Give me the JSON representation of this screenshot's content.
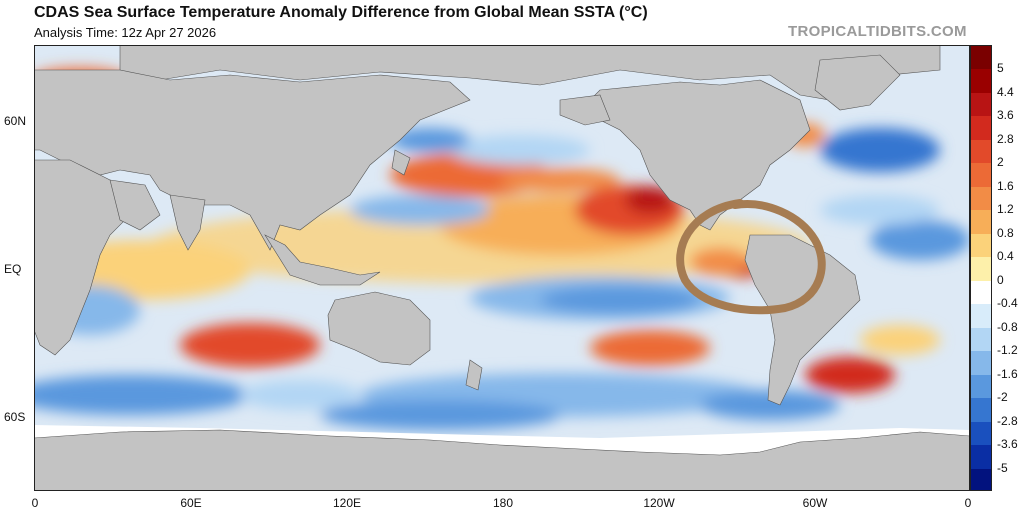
{
  "header": {
    "title": "CDAS Sea Surface Temperature Anomaly Difference from Global Mean SSTA (°C)",
    "subtitle": "Analysis Time: 12z Apr 27 2026",
    "watermark": "TROPICALTIDBITS.COM"
  },
  "axes": {
    "lat_labels": [
      "60N",
      "EQ",
      "60S"
    ],
    "lon_labels": [
      "0",
      "60E",
      "120E",
      "180",
      "120W",
      "60W",
      "0"
    ]
  },
  "colorbar": {
    "labels": [
      "5",
      "4.4",
      "3.6",
      "2.8",
      "2",
      "1.6",
      "1.2",
      "0.8",
      "0.4",
      "0",
      "-0.4",
      "-0.8",
      "-1.2",
      "-1.6",
      "-2",
      "-2.8",
      "-3.6",
      "-5"
    ],
    "colors": [
      "#7a0000",
      "#9a0000",
      "#b81414",
      "#d22a1e",
      "#e24a2a",
      "#ec6a36",
      "#f28c46",
      "#f7ae58",
      "#fbd27a",
      "#fdf0aa",
      "#ffffff",
      "#d8ecfa",
      "#b2d6f4",
      "#86b8ea",
      "#5a98de",
      "#3676d0",
      "#1a50be",
      "#0a2ea4",
      "#02127e"
    ]
  },
  "colors": {
    "land": "#c3c3c3",
    "ice": "#ffffff",
    "annotation": "#a67c52"
  },
  "annotation": {
    "shape": "hand-drawn circle around eastern tropical Pacific",
    "color_name": "brown"
  }
}
